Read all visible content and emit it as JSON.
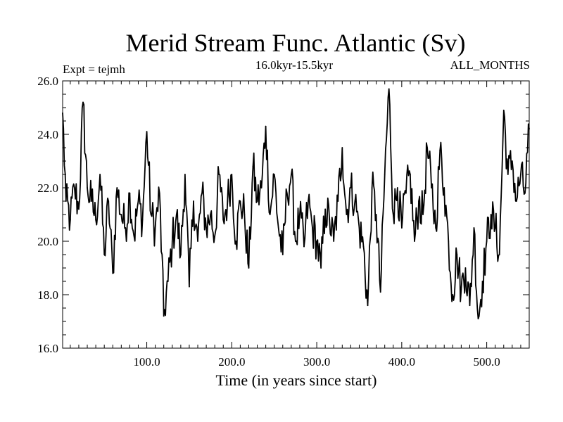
{
  "chart_data": {
    "type": "line",
    "title": "Merid Stream Func. Atlantic (Sv)",
    "subtitle": "16.0kyr-15.5kyr",
    "left_label": "Expt = tejmh",
    "right_label": "ALL_MONTHS",
    "xlabel": "Time (in years since start)",
    "ylabel": "",
    "xlim": [
      1,
      550
    ],
    "ylim": [
      16,
      26
    ],
    "x_ticks": [
      100,
      200,
      300,
      400,
      500
    ],
    "x_tick_labels": [
      "100.0",
      "200.0",
      "300.0",
      "400.0",
      "500.0"
    ],
    "y_ticks": [
      16,
      18,
      20,
      22,
      24,
      26
    ],
    "y_tick_labels": [
      "16.0",
      "18.0",
      "20.0",
      "22.0",
      "24.0",
      "26.0"
    ],
    "grid": false,
    "series": [
      {
        "name": "Merid Stream Func. Atlantic",
        "color": "#000000",
        "x": [
          1,
          5,
          10,
          15,
          20,
          25,
          30,
          35,
          40,
          45,
          50,
          55,
          60,
          65,
          70,
          75,
          80,
          85,
          90,
          95,
          100,
          105,
          110,
          115,
          120,
          125,
          130,
          135,
          140,
          145,
          150,
          155,
          160,
          165,
          170,
          175,
          180,
          185,
          190,
          195,
          200,
          205,
          210,
          215,
          220,
          225,
          230,
          235,
          240,
          245,
          250,
          255,
          260,
          265,
          270,
          275,
          280,
          285,
          290,
          295,
          300,
          305,
          310,
          315,
          320,
          325,
          330,
          335,
          340,
          345,
          350,
          355,
          360,
          365,
          370,
          375,
          380,
          385,
          390,
          395,
          400,
          405,
          410,
          415,
          420,
          425,
          430,
          435,
          440,
          445,
          450,
          455,
          460,
          465,
          470,
          475,
          480,
          485,
          490,
          495,
          500,
          505,
          510,
          515,
          520,
          525,
          530,
          535,
          540,
          545,
          550
        ],
        "values": [
          24.8,
          21.5,
          20.8,
          22.0,
          21.2,
          25.2,
          22.0,
          21.5,
          20.8,
          22.5,
          19.5,
          21.5,
          18.8,
          22.0,
          21.0,
          20.5,
          21.8,
          20.2,
          21.5,
          20.8,
          24.1,
          21.0,
          20.5,
          21.8,
          17.2,
          18.5,
          20.0,
          21.0,
          19.5,
          22.5,
          18.3,
          21.5,
          20.0,
          21.8,
          20.5,
          21.0,
          20.2,
          22.5,
          20.8,
          21.5,
          22.5,
          20.0,
          21.5,
          21.0,
          19.0,
          22.8,
          21.5,
          22.0,
          24.3,
          21.0,
          22.5,
          20.5,
          19.5,
          21.8,
          22.5,
          20.0,
          21.0,
          19.8,
          21.5,
          20.5,
          20.0,
          19.0,
          21.2,
          20.8,
          20.0,
          21.5,
          23.5,
          21.0,
          22.0,
          21.5,
          20.5,
          19.8,
          17.6,
          22.0,
          21.0,
          18.1,
          22.5,
          25.7,
          21.0,
          22.0,
          20.5,
          21.8,
          22.5,
          20.0,
          21.5,
          21.0,
          23.5,
          22.0,
          20.5,
          23.4,
          22.0,
          20.0,
          18.0,
          19.5,
          18.2,
          19.0,
          17.6,
          20.5,
          17.1,
          18.5,
          20.0,
          21.0,
          20.5,
          19.5,
          24.9,
          22.5,
          23.0,
          21.5,
          22.5,
          21.8,
          24.2
        ]
      }
    ]
  }
}
